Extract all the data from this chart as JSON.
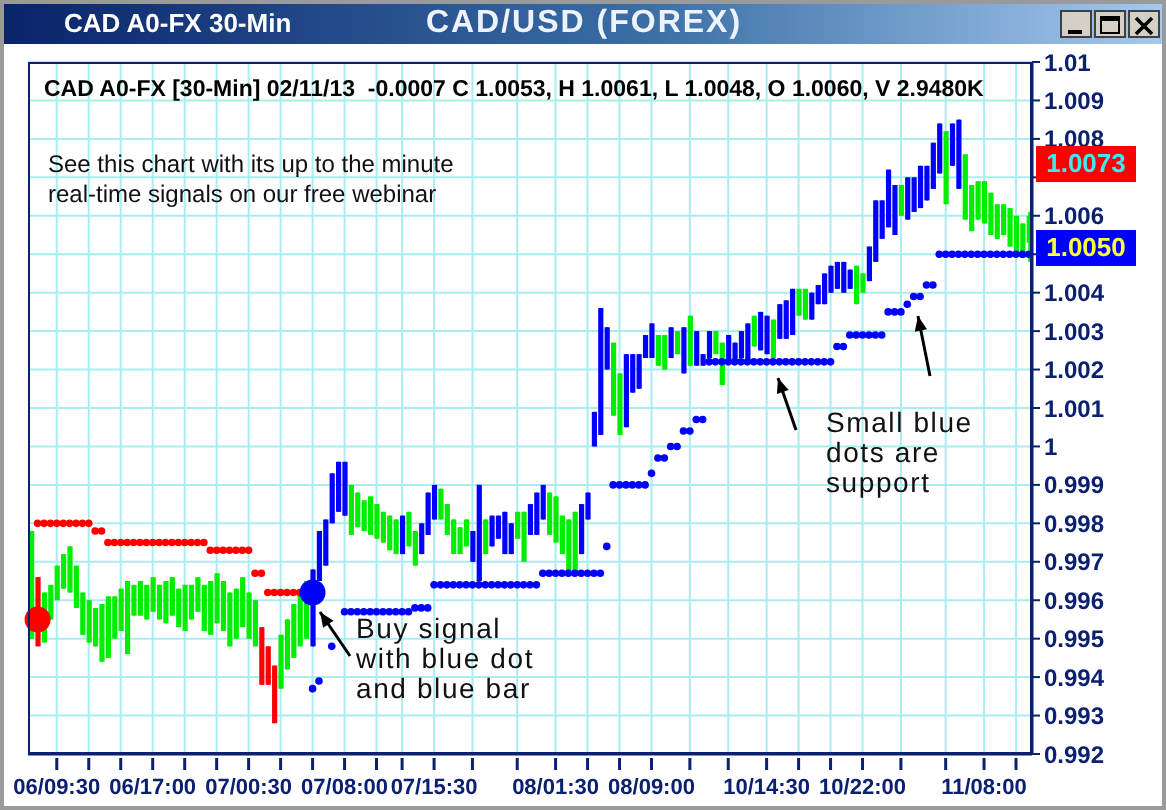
{
  "chart_data": {
    "type": "candlestick",
    "title": "CAD/USD (FOREX)",
    "subtitle": "CAD A0-FX [30-Min] 02/11/13  -0.0007 C 1.0053, H 1.0061, L 1.0048, O 1.0060, V 2.9480K",
    "annotations": [
      "CAD A0-FX 30-Min",
      "See this chart with its up to the minute\nreal-time signals on our free webinar",
      "Buy signal\nwith blue dot\nand blue bar",
      "Small blue\ndots are\nsupport",
      "1.0073",
      "1.0050"
    ],
    "categories": [
      null,
      null,
      null,
      null,
      "06/09:30",
      null,
      null,
      null,
      null,
      null,
      null,
      null,
      null,
      null,
      null,
      null,
      null,
      null,
      null,
      "06/17:00",
      null,
      null,
      null,
      null,
      null,
      null,
      null,
      null,
      null,
      null,
      null,
      null,
      null,
      null,
      "07/00:30",
      null,
      null,
      null,
      null,
      null,
      null,
      null,
      null,
      null,
      null,
      null,
      null,
      null,
      null,
      "07/08:00",
      null,
      null,
      null,
      null,
      null,
      null,
      null,
      null,
      null,
      null,
      null,
      null,
      null,
      "07/15:30",
      null,
      null,
      null,
      null,
      null,
      null,
      null,
      null,
      null,
      null,
      null,
      null,
      null,
      null,
      null,
      null,
      null,
      null,
      "08/01:30",
      null,
      null,
      null,
      null,
      null,
      null,
      null,
      null,
      null,
      null,
      null,
      null,
      null,
      null,
      "08/09:00",
      null,
      null,
      null,
      null,
      null,
      null,
      null,
      null,
      null,
      null,
      null,
      null,
      null,
      null,
      null,
      null,
      null,
      "10/14:30",
      null,
      null,
      null,
      null,
      null,
      null,
      null,
      null,
      null,
      null,
      null,
      null,
      null,
      null,
      "10/22:00",
      null,
      null,
      null,
      null,
      null,
      null,
      null,
      null,
      null,
      null,
      null,
      null,
      null,
      null,
      null,
      null,
      null,
      null,
      "11/08:00",
      null,
      null,
      null,
      null,
      null,
      null,
      null
    ],
    "ohlc": [
      [
        0.9978,
        0.9978,
        0.995,
        0.995
      ],
      [
        0.9966,
        0.9966,
        0.9948,
        0.9948
      ],
      [
        0.9962,
        0.9962,
        0.9949,
        0.9949
      ],
      [
        0.9964,
        0.9964,
        0.9955,
        0.9955
      ],
      [
        0.9969,
        0.9969,
        0.996,
        0.996
      ],
      [
        0.9972,
        0.9972,
        0.9963,
        0.9963
      ],
      [
        0.9974,
        0.9974,
        0.9962,
        0.9962
      ],
      [
        0.9969,
        0.9969,
        0.9958,
        0.9958
      ],
      [
        0.9962,
        0.9962,
        0.9951,
        0.9951
      ],
      [
        0.996,
        0.996,
        0.9949,
        0.9949
      ],
      [
        0.9958,
        0.9958,
        0.9948,
        0.9948
      ],
      [
        0.9959,
        0.9959,
        0.9944,
        0.9944
      ],
      [
        0.9961,
        0.9961,
        0.9945,
        0.9945
      ],
      [
        0.9961,
        0.9961,
        0.995,
        0.995
      ],
      [
        0.9963,
        0.9963,
        0.9952,
        0.9952
      ],
      [
        0.9965,
        0.9965,
        0.9946,
        0.9946
      ],
      [
        0.9964,
        0.9964,
        0.9956,
        0.9956
      ],
      [
        0.9965,
        0.9965,
        0.9956,
        0.9956
      ],
      [
        0.9964,
        0.9964,
        0.9955,
        0.9955
      ],
      [
        0.9966,
        0.9966,
        0.9957,
        0.9957
      ],
      [
        0.9964,
        0.9964,
        0.9955,
        0.9955
      ],
      [
        0.9965,
        0.9965,
        0.9954,
        0.9954
      ],
      [
        0.9966,
        0.9966,
        0.9956,
        0.9956
      ],
      [
        0.9963,
        0.9963,
        0.9953,
        0.9953
      ],
      [
        0.9964,
        0.9964,
        0.9952,
        0.9952
      ],
      [
        0.9964,
        0.9964,
        0.9955,
        0.9955
      ],
      [
        0.9966,
        0.9966,
        0.9957,
        0.9957
      ],
      [
        0.9964,
        0.9964,
        0.9952,
        0.9952
      ],
      [
        0.9965,
        0.9965,
        0.9951,
        0.9951
      ],
      [
        0.9967,
        0.9967,
        0.9954,
        0.9954
      ],
      [
        0.9965,
        0.9965,
        0.9952,
        0.9952
      ],
      [
        0.9962,
        0.9962,
        0.9948,
        0.9948
      ],
      [
        0.9963,
        0.9963,
        0.995,
        0.995
      ],
      [
        0.9966,
        0.9966,
        0.9953,
        0.9953
      ],
      [
        0.9962,
        0.9962,
        0.995,
        0.995
      ],
      [
        0.996,
        0.996,
        0.9948,
        0.9948
      ],
      [
        0.9953,
        0.9953,
        0.9938,
        0.9938
      ],
      [
        0.9948,
        0.9948,
        0.9938,
        0.9938
      ],
      [
        0.9943,
        0.9943,
        0.9928,
        0.9928
      ],
      [
        0.9951,
        0.9951,
        0.9937,
        0.9937
      ],
      [
        0.9955,
        0.9955,
        0.9942,
        0.9942
      ],
      [
        0.9959,
        0.9959,
        0.9945,
        0.9945
      ],
      [
        0.9962,
        0.9962,
        0.9948,
        0.9948
      ],
      [
        0.9965,
        0.9965,
        0.995,
        0.995
      ],
      [
        0.9948,
        0.9968,
        0.9948,
        0.9968
      ],
      [
        0.9965,
        0.9978,
        0.9965,
        0.9978
      ],
      [
        0.9969,
        0.9981,
        0.9969,
        0.9981
      ],
      [
        0.998,
        0.9993,
        0.998,
        0.9993
      ],
      [
        0.9983,
        0.9996,
        0.9983,
        0.9996
      ],
      [
        0.9982,
        0.9996,
        0.9982,
        0.9996
      ],
      [
        0.999,
        0.999,
        0.9977,
        0.9977
      ],
      [
        0.9988,
        0.9988,
        0.9979,
        0.9979
      ],
      [
        0.9986,
        0.9986,
        0.9978,
        0.9978
      ],
      [
        0.9987,
        0.9987,
        0.9977,
        0.9977
      ],
      [
        0.9985,
        0.9985,
        0.9976,
        0.9976
      ],
      [
        0.9983,
        0.9983,
        0.9975,
        0.9975
      ],
      [
        0.9982,
        0.9982,
        0.9973,
        0.9973
      ],
      [
        0.9981,
        0.9981,
        0.9972,
        0.9972
      ],
      [
        0.9972,
        0.9982,
        0.9972,
        0.9982
      ],
      [
        0.9983,
        0.9983,
        0.9974,
        0.9974
      ],
      [
        0.9978,
        0.9978,
        0.9969,
        0.9969
      ],
      [
        0.9972,
        0.998,
        0.9972,
        0.998
      ],
      [
        0.9977,
        0.9988,
        0.9977,
        0.9988
      ],
      [
        0.9981,
        0.999,
        0.9981,
        0.999
      ],
      [
        0.9989,
        0.9989,
        0.9981,
        0.9981
      ],
      [
        0.9985,
        0.9985,
        0.9977,
        0.9977
      ],
      [
        0.9981,
        0.9981,
        0.9972,
        0.9972
      ],
      [
        0.9979,
        0.9979,
        0.9972,
        0.9972
      ],
      [
        0.9981,
        0.9981,
        0.9974,
        0.9974
      ],
      [
        0.997,
        0.9978,
        0.997,
        0.9978
      ],
      [
        0.9965,
        0.999,
        0.9965,
        0.999
      ],
      [
        0.9981,
        0.9981,
        0.9972,
        0.9972
      ],
      [
        0.9974,
        0.9982,
        0.9974,
        0.9982
      ],
      [
        0.9976,
        0.9982,
        0.9976,
        0.9982
      ],
      [
        0.9972,
        0.9983,
        0.9972,
        0.9983
      ],
      [
        0.9972,
        0.998,
        0.9972,
        0.998
      ],
      [
        0.9983,
        0.9983,
        0.9976,
        0.9976
      ],
      [
        0.9983,
        0.9983,
        0.997,
        0.997
      ],
      [
        0.9977,
        0.9985,
        0.9977,
        0.9985
      ],
      [
        0.9977,
        0.9988,
        0.9977,
        0.9988
      ],
      [
        0.9981,
        0.999,
        0.9981,
        0.999
      ],
      [
        0.9988,
        0.9988,
        0.9977,
        0.9977
      ],
      [
        0.9987,
        0.9987,
        0.9975,
        0.9975
      ],
      [
        0.9982,
        0.9982,
        0.9972,
        0.9972
      ],
      [
        0.9981,
        0.9981,
        0.9967,
        0.9967
      ],
      [
        0.9983,
        0.9983,
        0.9967,
        0.9967
      ],
      [
        0.9972,
        0.9985,
        0.9972,
        0.9985
      ],
      [
        0.9981,
        0.9988,
        0.9981,
        0.9988
      ],
      [
        1.0,
        1.0009,
        1.0,
        1.0009
      ],
      [
        1.0003,
        1.0036,
        1.0003,
        1.0036
      ],
      [
        1.002,
        1.0031,
        1.002,
        1.0031
      ],
      [
        1.0027,
        1.0027,
        1.0008,
        1.0008
      ],
      [
        1.0019,
        1.0019,
        1.0003,
        1.0003
      ],
      [
        1.0005,
        1.0024,
        1.0005,
        1.0024
      ],
      [
        1.0014,
        1.0024,
        1.0014,
        1.0024
      ],
      [
        1.0015,
        1.0024,
        1.0015,
        1.0024
      ],
      [
        1.0023,
        1.0029,
        1.0023,
        1.0029
      ],
      [
        1.0023,
        1.0032,
        1.0023,
        1.0032
      ],
      [
        1.0029,
        1.0029,
        1.0021,
        1.0021
      ],
      [
        1.0029,
        1.0029,
        1.002,
        1.002
      ],
      [
        1.0023,
        1.0031,
        1.0023,
        1.0031
      ],
      [
        1.003,
        1.003,
        1.0024,
        1.0024
      ],
      [
        1.0019,
        1.0031,
        1.0019,
        1.0031
      ],
      [
        1.0034,
        1.0034,
        1.0021,
        1.0021
      ],
      [
        1.0021,
        1.003,
        1.0021,
        1.003
      ],
      [
        1.0021,
        1.0024,
        1.0021,
        1.0024
      ],
      [
        1.0023,
        1.003,
        1.0023,
        1.003
      ],
      [
        1.003,
        1.003,
        1.0024,
        1.0024
      ],
      [
        1.0027,
        1.0027,
        1.0016,
        1.0016
      ],
      [
        1.0022,
        1.0029,
        1.0022,
        1.0029
      ],
      [
        1.0022,
        1.0027,
        1.0022,
        1.0027
      ],
      [
        1.0023,
        1.003,
        1.0023,
        1.003
      ],
      [
        1.0022,
        1.0032,
        1.0022,
        1.0032
      ],
      [
        1.0034,
        1.0034,
        1.0026,
        1.0026
      ],
      [
        1.0025,
        1.0035,
        1.0025,
        1.0035
      ],
      [
        1.0024,
        1.0034,
        1.0024,
        1.0034
      ],
      [
        1.0033,
        1.0033,
        1.0023,
        1.0023
      ],
      [
        1.0028,
        1.0037,
        1.0028,
        1.0037
      ],
      [
        1.0028,
        1.0038,
        1.0028,
        1.0038
      ],
      [
        1.0029,
        1.0041,
        1.0029,
        1.0041
      ],
      [
        1.0041,
        1.0041,
        1.0034,
        1.0034
      ],
      [
        1.0041,
        1.0041,
        1.0033,
        1.0033
      ],
      [
        1.0033,
        1.004,
        1.0033,
        1.004
      ],
      [
        1.0037,
        1.0042,
        1.0037,
        1.0042
      ],
      [
        1.0037,
        1.0045,
        1.0037,
        1.0045
      ],
      [
        1.004,
        1.0047,
        1.004,
        1.0047
      ],
      [
        1.0041,
        1.0048,
        1.0041,
        1.0048
      ],
      [
        1.004,
        1.0048,
        1.004,
        1.0048
      ],
      [
        1.0041,
        1.0046,
        1.0041,
        1.0046
      ],
      [
        1.0047,
        1.0047,
        1.0037,
        1.0037
      ],
      [
        1.0045,
        1.0045,
        1.004,
        1.004
      ],
      [
        1.0043,
        1.0052,
        1.0043,
        1.0052
      ],
      [
        1.0048,
        1.0064,
        1.0048,
        1.0064
      ],
      [
        1.0054,
        1.0064,
        1.0054,
        1.0064
      ],
      [
        1.0057,
        1.0072,
        1.0057,
        1.0072
      ],
      [
        1.0055,
        1.0068,
        1.0055,
        1.0068
      ],
      [
        1.0068,
        1.0068,
        1.006,
        1.006
      ],
      [
        1.0059,
        1.007,
        1.0059,
        1.007
      ],
      [
        1.0061,
        1.007,
        1.0061,
        1.007
      ],
      [
        1.0062,
        1.0073,
        1.0062,
        1.0073
      ],
      [
        1.0064,
        1.0073,
        1.0064,
        1.0073
      ],
      [
        1.0067,
        1.0079,
        1.0067,
        1.0079
      ],
      [
        1.0071,
        1.0084,
        1.0071,
        1.0084
      ],
      [
        1.0082,
        1.0082,
        1.0063,
        1.0063
      ],
      [
        1.0073,
        1.0084,
        1.0073,
        1.0084
      ],
      [
        1.0067,
        1.0085,
        1.0067,
        1.0085
      ],
      [
        1.0076,
        1.0076,
        1.0059,
        1.0059
      ],
      [
        1.0068,
        1.0068,
        1.0056,
        1.0056
      ],
      [
        1.0069,
        1.0069,
        1.0059,
        1.0059
      ],
      [
        1.0069,
        1.0069,
        1.0058,
        1.0058
      ],
      [
        1.0066,
        1.0066,
        1.0055,
        1.0055
      ],
      [
        1.0063,
        1.0063,
        1.0054,
        1.0054
      ],
      [
        1.0063,
        1.0063,
        1.0055,
        1.0055
      ],
      [
        1.0062,
        1.0062,
        1.0052,
        1.0052
      ],
      [
        1.006,
        1.006,
        1.005,
        1.005
      ],
      [
        1.0058,
        1.0058,
        1.0049,
        1.0049
      ],
      [
        1.006,
        1.0061,
        1.0048,
        1.0053
      ]
    ],
    "colors": [
      "#00ee00",
      "#ff0000",
      "#00ee00",
      "#00ee00",
      "#00ee00",
      "#00ee00",
      "#00ee00",
      "#00ee00",
      "#00ee00",
      "#00ee00",
      "#00ee00",
      "#00ee00",
      "#00ee00",
      "#00ee00",
      "#00ee00",
      "#00ee00",
      "#00ee00",
      "#00ee00",
      "#00ee00",
      "#00ee00",
      "#00ee00",
      "#00ee00",
      "#00ee00",
      "#00ee00",
      "#00ee00",
      "#00ee00",
      "#00ee00",
      "#00ee00",
      "#00ee00",
      "#00ee00",
      "#00ee00",
      "#00ee00",
      "#00ee00",
      "#00ee00",
      "#00ee00",
      "#00ee00",
      "#ff0000",
      "#ff0000",
      "#ff0000",
      "#00ee00",
      "#00ee00",
      "#00ee00",
      "#00ee00",
      "#00ee00",
      "#0000ff",
      "#0000ff",
      "#0000ff",
      "#0000ff",
      "#0000ff",
      "#0000ff",
      "#00ee00",
      "#00ee00",
      "#00ee00",
      "#00ee00",
      "#00ee00",
      "#00ee00",
      "#00ee00",
      "#00ee00",
      "#0000ff",
      "#00ee00",
      "#00ee00",
      "#0000ff",
      "#0000ff",
      "#0000ff",
      "#00ee00",
      "#00ee00",
      "#00ee00",
      "#00ee00",
      "#00ee00",
      "#0000ff",
      "#0000ff",
      "#00ee00",
      "#0000ff",
      "#0000ff",
      "#0000ff",
      "#0000ff",
      "#00ee00",
      "#00ee00",
      "#0000ff",
      "#0000ff",
      "#0000ff",
      "#00ee00",
      "#00ee00",
      "#00ee00",
      "#00ee00",
      "#00ee00",
      "#0000ff",
      "#0000ff",
      "#0000ff",
      "#0000ff",
      "#0000ff",
      "#00ee00",
      "#00ee00",
      "#0000ff",
      "#0000ff",
      "#0000ff",
      "#0000ff",
      "#0000ff",
      "#00ee00",
      "#00ee00",
      "#0000ff",
      "#00ee00",
      "#0000ff",
      "#00ee00",
      "#0000ff",
      "#0000ff",
      "#0000ff",
      "#00ee00",
      "#00ee00",
      "#0000ff",
      "#0000ff",
      "#0000ff",
      "#0000ff",
      "#00ee00",
      "#0000ff",
      "#0000ff",
      "#00ee00",
      "#0000ff",
      "#0000ff",
      "#0000ff",
      "#00ee00",
      "#00ee00",
      "#0000ff",
      "#0000ff",
      "#0000ff",
      "#0000ff",
      "#0000ff",
      "#0000ff",
      "#0000ff",
      "#00ee00",
      "#00ee00",
      "#0000ff",
      "#0000ff",
      "#0000ff",
      "#0000ff",
      "#0000ff",
      "#00ee00",
      "#0000ff",
      "#0000ff",
      "#0000ff",
      "#0000ff",
      "#0000ff",
      "#0000ff",
      "#00ee00",
      "#0000ff",
      "#0000ff",
      "#00ee00",
      "#00ee00",
      "#00ee00",
      "#00ee00",
      "#00ee00",
      "#00ee00",
      "#00ee00",
      "#00ee00",
      "#00ee00",
      "#00ee00",
      "#00ee00"
    ],
    "series": [
      {
        "type": "scatter",
        "color": "#ff0000",
        "values": [
          null,
          0.998,
          0.998,
          0.998,
          0.998,
          0.998,
          0.998,
          0.998,
          0.998,
          0.998,
          0.9978,
          0.9978,
          0.9975,
          0.9975,
          0.9975,
          0.9975,
          0.9975,
          0.9975,
          0.9975,
          0.9975,
          0.9975,
          0.9975,
          0.9975,
          0.9975,
          0.9975,
          0.9975,
          0.9975,
          0.9975,
          0.9973,
          0.9973,
          0.9973,
          0.9973,
          0.9973,
          0.9973,
          0.9973,
          0.9967,
          0.9967,
          0.9962,
          0.9962,
          0.9962,
          0.9962,
          0.9962,
          0.9962,
          null,
          null,
          null,
          null,
          null,
          null,
          null,
          null,
          null,
          null,
          null,
          null,
          null,
          null,
          null,
          null,
          null,
          null,
          null,
          null,
          null,
          null,
          null,
          null,
          null,
          null,
          null,
          null,
          null,
          null,
          null,
          null,
          null,
          null,
          null,
          null,
          null,
          null,
          null,
          null,
          null,
          null,
          null,
          null,
          null,
          null,
          null,
          null,
          null,
          null,
          null,
          null,
          null,
          null,
          null,
          null,
          null,
          null,
          null,
          null,
          null,
          null,
          null,
          null,
          null,
          null,
          null,
          null,
          null,
          null,
          null,
          null,
          null,
          null,
          null,
          null,
          null,
          null,
          null,
          null,
          null,
          null,
          null,
          null,
          null,
          null,
          null,
          null,
          null,
          null,
          null,
          null,
          null,
          null,
          null,
          null,
          null,
          null,
          null,
          null,
          null,
          null,
          null,
          null,
          null,
          null,
          null,
          null,
          null,
          null,
          null,
          null,
          null,
          null
        ]
      },
      {
        "type": "scatter",
        "color": "#0000ff",
        "values": [
          null,
          null,
          null,
          null,
          null,
          null,
          null,
          null,
          null,
          null,
          null,
          null,
          null,
          null,
          null,
          null,
          null,
          null,
          null,
          null,
          null,
          null,
          null,
          null,
          null,
          null,
          null,
          null,
          null,
          null,
          null,
          null,
          null,
          null,
          null,
          null,
          null,
          null,
          null,
          null,
          null,
          null,
          null,
          null,
          0.9937,
          0.9939,
          null,
          0.9948,
          null,
          0.9957,
          0.9957,
          0.9957,
          0.9957,
          0.9957,
          0.9957,
          0.9957,
          0.9957,
          0.9957,
          0.9957,
          0.9957,
          0.9958,
          0.9958,
          0.9958,
          0.9964,
          0.9964,
          0.9964,
          0.9964,
          0.9964,
          0.9964,
          0.9964,
          0.9964,
          0.9964,
          0.9964,
          0.9964,
          0.9964,
          0.9964,
          0.9964,
          0.9964,
          0.9964,
          0.9964,
          0.9967,
          0.9967,
          0.9967,
          0.9967,
          0.9967,
          0.9967,
          0.9967,
          0.9967,
          0.9967,
          0.9967,
          0.9974,
          0.999,
          0.999,
          0.999,
          0.999,
          0.999,
          0.999,
          0.9993,
          0.9997,
          0.9997,
          1.0,
          1.0,
          1.0004,
          1.0004,
          1.0007,
          1.0007,
          1.0022,
          1.0022,
          1.0022,
          1.0022,
          1.0022,
          1.0022,
          1.0022,
          1.0022,
          1.0022,
          1.0022,
          1.0022,
          1.0022,
          1.0022,
          1.0022,
          1.0022,
          1.0022,
          1.0022,
          1.0022,
          1.0022,
          1.0022,
          1.0026,
          1.0026,
          1.0029,
          1.0029,
          1.0029,
          1.0029,
          1.0029,
          1.0029,
          1.0035,
          1.0035,
          1.0035,
          1.0037,
          1.0039,
          1.0039,
          1.0042,
          1.0042,
          1.005,
          1.005,
          1.005,
          1.005,
          1.005,
          1.005,
          1.005,
          1.005,
          1.005,
          1.005,
          1.005,
          1.005,
          1.005,
          1.005,
          1.005
        ]
      },
      {
        "type": "scatter",
        "color": "#ff0000",
        "values": [
          null,
          0.9955,
          null,
          null,
          null,
          null,
          null,
          null,
          null,
          null,
          null,
          null,
          null,
          null,
          null,
          null,
          null,
          null,
          null,
          null,
          null,
          null,
          null,
          null,
          null,
          null,
          null,
          null,
          null,
          null,
          null,
          null,
          null,
          null,
          null,
          null,
          null,
          null,
          null,
          null,
          null,
          null,
          null,
          null,
          null,
          null,
          null,
          null,
          null,
          null,
          null,
          null,
          null,
          null,
          null,
          null,
          null,
          null,
          null,
          null,
          null,
          null,
          null,
          null,
          null,
          null,
          null,
          null,
          null,
          null,
          null,
          null,
          null,
          null,
          null,
          null,
          null,
          null,
          null,
          null,
          null,
          null,
          null,
          null,
          null,
          null,
          null,
          null,
          null,
          null,
          null,
          null,
          null,
          null,
          null,
          null,
          null,
          null,
          null,
          null,
          null,
          null,
          null,
          null,
          null,
          null,
          null,
          null,
          null,
          null,
          null,
          null,
          null,
          null,
          null,
          null,
          null,
          null,
          null,
          null,
          null,
          null,
          null,
          null,
          null,
          null,
          null,
          null,
          null,
          null,
          null,
          null,
          null,
          null,
          null,
          null,
          null,
          null,
          null,
          null,
          null,
          null,
          null,
          null,
          null,
          null,
          null,
          null,
          null,
          null,
          null,
          null,
          null,
          null,
          null,
          null,
          null
        ]
      },
      {
        "type": "scatter",
        "color": "#0000ff",
        "values": [
          null,
          null,
          null,
          null,
          null,
          null,
          null,
          null,
          null,
          null,
          null,
          null,
          null,
          null,
          null,
          null,
          null,
          null,
          null,
          null,
          null,
          null,
          null,
          null,
          null,
          null,
          null,
          null,
          null,
          null,
          null,
          null,
          null,
          null,
          null,
          null,
          null,
          null,
          null,
          null,
          null,
          null,
          null,
          null,
          0.9962,
          null,
          null,
          null,
          null,
          null,
          null,
          null,
          null,
          null,
          null,
          null,
          null,
          null,
          null,
          null,
          null,
          null,
          null,
          null,
          null,
          null,
          null,
          null,
          null,
          null,
          null,
          null,
          null,
          null,
          null,
          null,
          null,
          null,
          null,
          null,
          null,
          null,
          null,
          null,
          null,
          null,
          null,
          null,
          null,
          null,
          null,
          null,
          null,
          null,
          null,
          null,
          null,
          null,
          null,
          null,
          null,
          null,
          null,
          null,
          null,
          null,
          null,
          null,
          null,
          null,
          null,
          null,
          null,
          null,
          null,
          null,
          null,
          null,
          null,
          null,
          null,
          null,
          null,
          null,
          null,
          null,
          null,
          null,
          null,
          null,
          null,
          null,
          null,
          null,
          null,
          null,
          null,
          null,
          null,
          null,
          null,
          null,
          null,
          null,
          null,
          null,
          null,
          null,
          null,
          null,
          null,
          null,
          null,
          null,
          null,
          null,
          null
        ]
      }
    ],
    "marker": "circle",
    "ylim": [
      0.992,
      1.01
    ],
    "yticks": [
      0.992,
      0.993,
      0.994,
      0.995,
      0.996,
      0.997,
      0.998,
      0.999,
      1,
      1.001,
      1.002,
      1.003,
      1.004,
      {
        "value": 1.005,
        "label": null
      },
      1.006,
      {
        "value": 1.007,
        "label": null
      },
      1.008,
      1.009,
      1.01
    ],
    "grid": true
  }
}
